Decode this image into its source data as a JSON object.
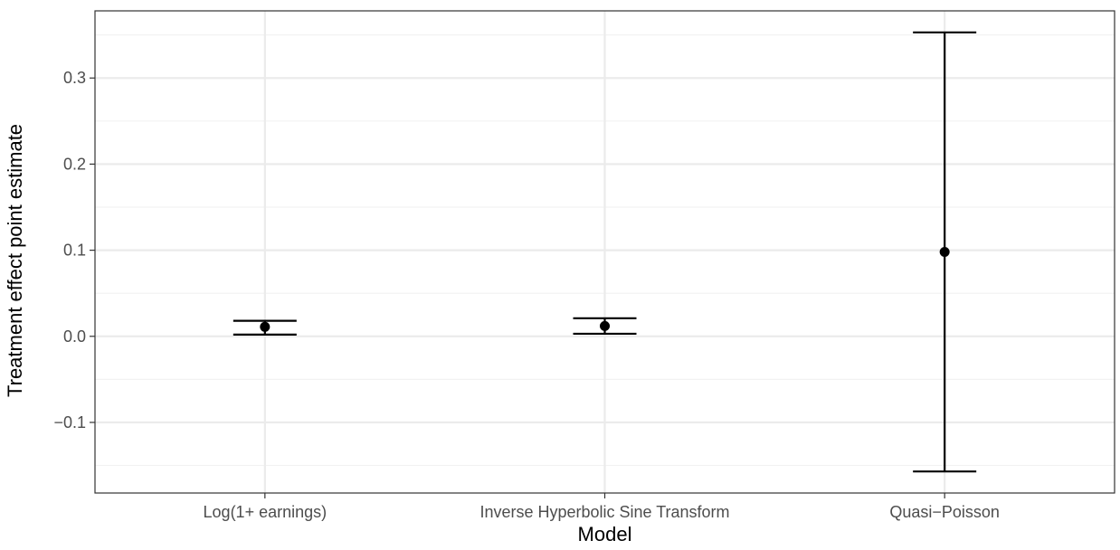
{
  "chart_data": {
    "type": "errorbar",
    "xlabel": "Model",
    "ylabel": "Treatment effect point estimate",
    "categories": [
      "Log(1+ earnings)",
      "Inverse Hyperbolic Sine Transform",
      "Quasi−Poisson"
    ],
    "points": [
      {
        "model": "Log(1+ earnings)",
        "estimate": 0.011,
        "lower": 0.002,
        "upper": 0.018
      },
      {
        "model": "Inverse Hyperbolic Sine Transform",
        "estimate": 0.012,
        "lower": 0.003,
        "upper": 0.021
      },
      {
        "model": "Quasi−Poisson",
        "estimate": 0.098,
        "lower": -0.157,
        "upper": 0.353
      }
    ],
    "yticks": [
      -0.1,
      0.0,
      0.1,
      0.2,
      0.3
    ],
    "ytick_labels": [
      "−0.1",
      "0.0",
      "0.1",
      "0.2",
      "0.3"
    ],
    "ylim": [
      -0.182,
      0.378
    ],
    "grid": true,
    "legend": "none",
    "colors": {
      "marks": "#000000",
      "grid_major": "#ebebeb",
      "grid_minor": "#f2f2f2",
      "panel_border": "#333333",
      "tick_text": "#4d4d4d"
    }
  }
}
